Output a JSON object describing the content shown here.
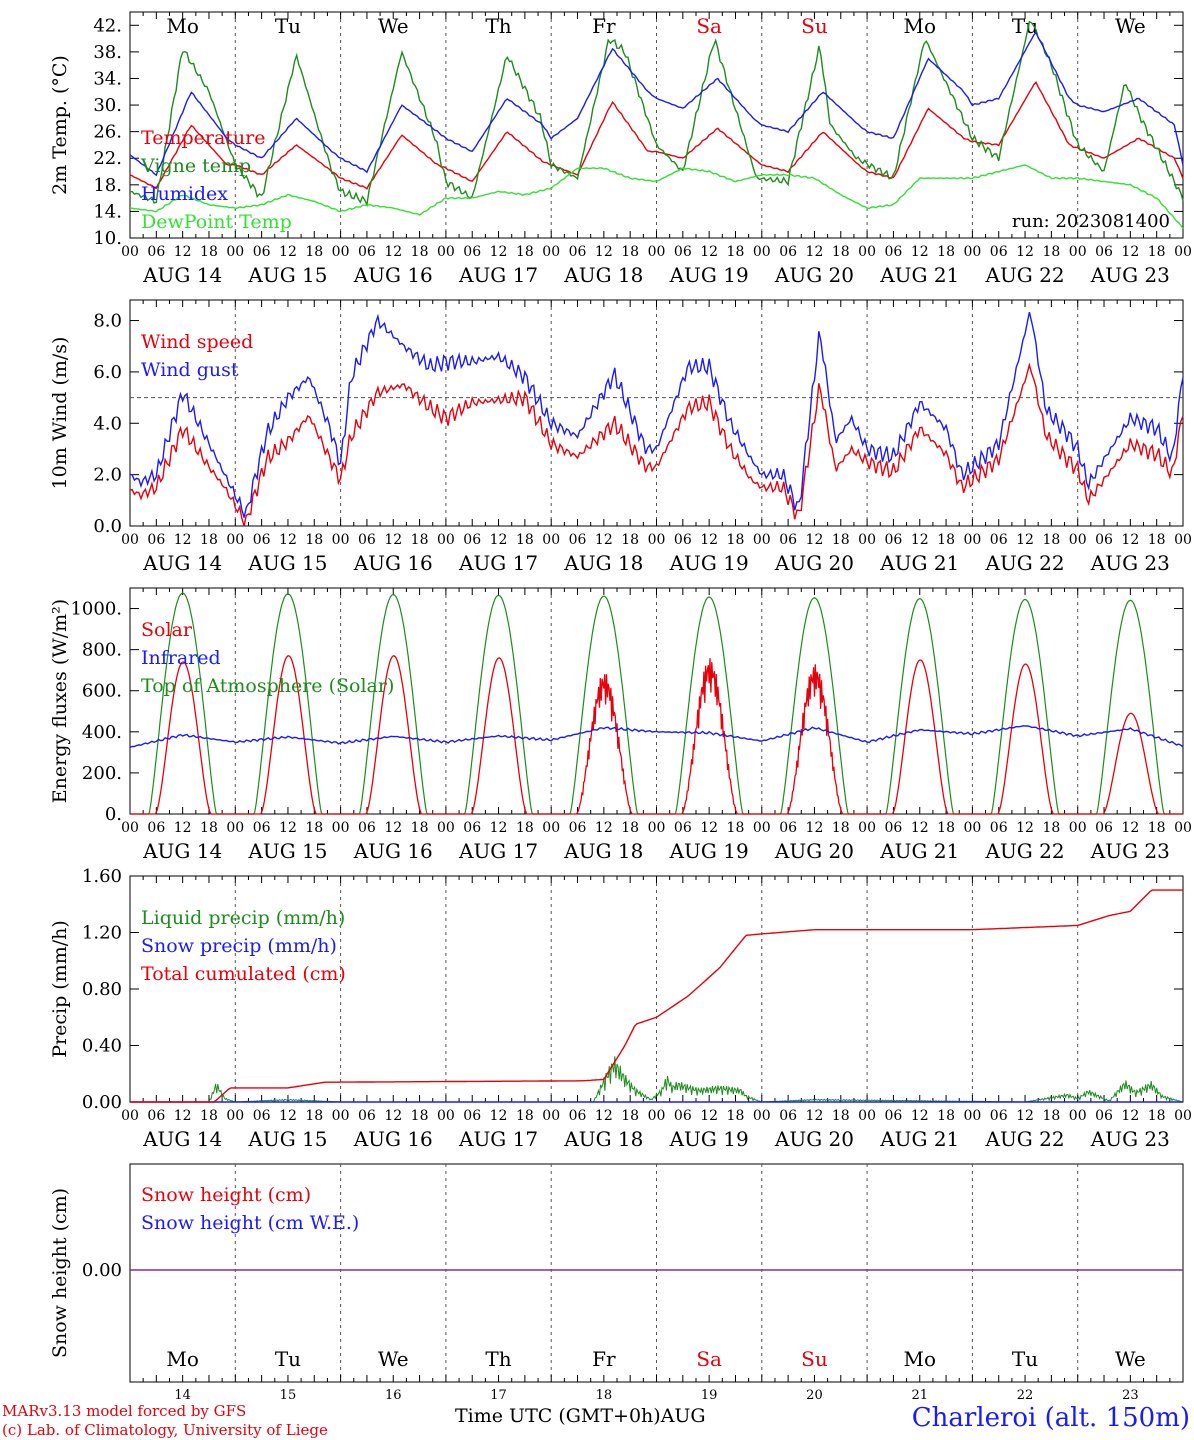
{
  "days": {
    "labels": [
      "Mo",
      "Tu",
      "We",
      "Th",
      "Fr",
      "Sa",
      "Su",
      "Mo",
      "Tu",
      "We"
    ],
    "weekend_flags": [
      false,
      false,
      false,
      false,
      false,
      true,
      true,
      false,
      false,
      false
    ],
    "dates": [
      "AUG 14",
      "AUG 15",
      "AUG 16",
      "AUG 17",
      "AUG 18",
      "AUG 19",
      "AUG 20",
      "AUG 21",
      "AUG 22",
      "AUG 23"
    ],
    "day_numbers": [
      "14",
      "15",
      "16",
      "17",
      "18",
      "19",
      "20",
      "21",
      "22",
      "23"
    ],
    "hour_ticks": [
      "00",
      "06",
      "12",
      "18"
    ],
    "final_tick": "00"
  },
  "colors": {
    "red": "#e8000b",
    "green": "#1c8c1c",
    "blue": "#1a1aff",
    "lightgreen": "#33e033",
    "purple": "#8b2a8b",
    "axis": "#000000",
    "grid": "#555555"
  },
  "footer": {
    "credit_1": "MARv3.13 model forced by GFS",
    "credit_2": "(c) Lab. of Climatology, University of Liege",
    "time_label": "Time UTC (GMT+0h)AUG",
    "station": "Charleroi (alt. 150m)"
  },
  "chart_data": [
    {
      "type": "line",
      "ylabel": "2m Temp. (°C)",
      "ylim": [
        10,
        44
      ],
      "yticks": [
        "10.",
        "14.",
        "18.",
        "22.",
        "26.",
        "30.",
        "34.",
        "38.",
        "42."
      ],
      "annotation": "run: 2023081400",
      "x_range_days": [
        0,
        10
      ],
      "series": [
        {
          "name": "Temperature",
          "color": "red",
          "x": [
            0,
            0.25,
            0.58,
            0.92,
            1.0,
            1.25,
            1.58,
            1.92,
            2.0,
            2.25,
            2.58,
            2.92,
            3.0,
            3.25,
            3.58,
            3.92,
            4.0,
            4.25,
            4.58,
            4.92,
            5.0,
            5.25,
            5.58,
            5.92,
            6.0,
            6.25,
            6.58,
            6.92,
            7.0,
            7.25,
            7.58,
            7.92,
            8.0,
            8.25,
            8.6,
            8.92,
            9.0,
            9.25,
            9.58,
            9.92,
            10.0
          ],
          "y": [
            19.5,
            17.5,
            27,
            21,
            21,
            19.5,
            24,
            20,
            19,
            17.5,
            25.5,
            21,
            20.5,
            18.5,
            26,
            21.5,
            21,
            19.5,
            30.5,
            23,
            23,
            22,
            26.5,
            22,
            21,
            20,
            26,
            21,
            20,
            19,
            29.5,
            25,
            24.5,
            24,
            33.5,
            24,
            23.5,
            22,
            25,
            22,
            19
          ]
        },
        {
          "name": "Vigne temp",
          "color": "green",
          "x": [
            0,
            0.25,
            0.5,
            0.75,
            1.0,
            1.25,
            1.58,
            1.8,
            1.92,
            2.0,
            2.25,
            2.58,
            2.9,
            3.0,
            3.25,
            3.58,
            3.9,
            4.0,
            4.25,
            4.55,
            4.7,
            5.0,
            5.25,
            5.55,
            5.7,
            5.95,
            6.25,
            6.55,
            6.65,
            6.9,
            7.25,
            7.55,
            7.7,
            8.0,
            8.25,
            8.55,
            8.75,
            9.0,
            9.25,
            9.45,
            9.6,
            10.0
          ],
          "y": [
            17,
            15.5,
            38.5,
            32,
            21,
            16,
            37.5,
            26,
            20,
            17,
            15.5,
            38,
            25,
            18.5,
            16,
            37.5,
            28,
            21,
            19,
            40,
            38,
            24,
            20,
            40,
            32,
            19,
            18.5,
            39,
            27,
            22,
            19,
            40,
            35,
            25,
            22,
            43,
            36,
            24,
            20,
            33.5,
            28,
            16
          ]
        },
        {
          "name": "Humidex",
          "color": "blue",
          "x": [
            0,
            0.25,
            0.58,
            0.92,
            1.0,
            1.25,
            1.58,
            1.92,
            2.0,
            2.25,
            2.58,
            2.92,
            3.0,
            3.25,
            3.58,
            3.92,
            4.0,
            4.25,
            4.58,
            4.92,
            5.0,
            5.25,
            5.58,
            5.92,
            6.0,
            6.25,
            6.58,
            6.92,
            7.0,
            7.25,
            7.58,
            7.92,
            8.0,
            8.25,
            8.6,
            8.92,
            9.0,
            9.25,
            9.58,
            9.92,
            10.0
          ],
          "y": [
            22.5,
            19.5,
            32,
            25,
            24,
            22,
            28,
            23,
            22,
            20,
            30,
            26,
            25,
            23,
            31,
            27,
            25,
            28,
            38.5,
            32,
            31,
            29.5,
            34,
            28,
            27,
            26,
            32,
            27,
            26,
            25,
            37,
            32,
            30,
            31,
            41,
            31,
            30,
            29,
            31,
            27,
            21
          ]
        },
        {
          "name": "DewPoint Temp",
          "color": "lightgreen",
          "x": [
            0,
            0.25,
            0.5,
            0.75,
            1.0,
            1.25,
            1.5,
            1.75,
            2.0,
            2.25,
            2.5,
            2.75,
            3.0,
            3.25,
            3.5,
            3.75,
            4.0,
            4.25,
            4.5,
            4.75,
            5.0,
            5.25,
            5.5,
            5.75,
            6.0,
            6.25,
            6.5,
            6.75,
            7.0,
            7.25,
            7.5,
            7.75,
            8.0,
            8.25,
            8.5,
            8.75,
            9.0,
            9.25,
            9.5,
            9.75,
            10.0
          ],
          "y": [
            14.5,
            14,
            16.5,
            15,
            14.5,
            15,
            16.5,
            15.5,
            14,
            15,
            14.5,
            13.5,
            16,
            16,
            17,
            16.5,
            17.5,
            20.5,
            20.5,
            19,
            18.5,
            20.5,
            20,
            18.5,
            19.5,
            19.5,
            19,
            16.5,
            14.5,
            15,
            19,
            19,
            19,
            20,
            21,
            19,
            19,
            18.5,
            18,
            16,
            11.5
          ]
        }
      ]
    },
    {
      "type": "line",
      "ylabel": "10m Wind (m/s)",
      "ylim": [
        0,
        8.8
      ],
      "yticks": [
        "0.0",
        "2.0",
        "4.0",
        "6.0",
        "8.0"
      ],
      "reference_line": 5.0,
      "x_range_days": [
        0,
        10
      ],
      "series": [
        {
          "name": "Wind speed",
          "color": "red",
          "x": [
            0,
            0.1,
            0.25,
            0.5,
            0.75,
            0.9,
            1.0,
            1.1,
            1.15,
            1.3,
            1.5,
            1.7,
            1.9,
            2.0,
            2.1,
            2.35,
            2.6,
            2.85,
            3.0,
            3.25,
            3.5,
            3.75,
            4.0,
            4.25,
            4.6,
            4.9,
            5.0,
            5.3,
            5.5,
            5.7,
            5.9,
            6.0,
            6.2,
            6.35,
            6.55,
            6.7,
            6.85,
            7.0,
            7.25,
            7.5,
            7.75,
            7.9,
            8.0,
            8.25,
            8.55,
            8.7,
            8.9,
            9.0,
            9.1,
            9.25,
            9.5,
            9.75,
            9.9,
            10.0
          ],
          "y": [
            1.4,
            1.2,
            1.5,
            3.8,
            2.3,
            1.5,
            0.8,
            0.1,
            0.8,
            2.6,
            3.3,
            4.3,
            2.6,
            1.8,
            3.5,
            5.2,
            5.5,
            4.6,
            4.2,
            4.8,
            4.9,
            5.0,
            3.2,
            2.7,
            4.0,
            2.3,
            2.3,
            4.6,
            4.8,
            3.0,
            1.8,
            1.5,
            1.5,
            0.3,
            5.5,
            2.2,
            3.0,
            2.5,
            2.1,
            3.8,
            2.8,
            1.5,
            1.8,
            2.6,
            6.3,
            3.5,
            2.6,
            2.2,
            1.0,
            1.8,
            3.2,
            2.8,
            2.0,
            4.5
          ]
        },
        {
          "name": "Wind gust",
          "color": "blue",
          "x": [
            0,
            0.1,
            0.25,
            0.5,
            0.75,
            0.9,
            1.0,
            1.1,
            1.15,
            1.3,
            1.5,
            1.7,
            1.9,
            2.0,
            2.1,
            2.35,
            2.6,
            2.85,
            3.0,
            3.25,
            3.5,
            3.75,
            4.0,
            4.25,
            4.6,
            4.9,
            5.0,
            5.3,
            5.5,
            5.7,
            5.9,
            6.0,
            6.2,
            6.35,
            6.55,
            6.7,
            6.85,
            7.0,
            7.25,
            7.5,
            7.75,
            7.9,
            8.0,
            8.25,
            8.55,
            8.7,
            8.9,
            9.0,
            9.1,
            9.25,
            9.5,
            9.75,
            9.9,
            10.0
          ],
          "y": [
            2.0,
            1.7,
            2.0,
            5.2,
            3.2,
            2.0,
            1.2,
            0.4,
            1.3,
            3.6,
            5.0,
            5.8,
            3.8,
            2.4,
            5.8,
            8.0,
            7.0,
            6.2,
            6.4,
            6.4,
            6.6,
            5.8,
            4.0,
            3.5,
            5.9,
            3.0,
            3.0,
            6.2,
            6.2,
            4.0,
            2.6,
            2.0,
            2.0,
            0.6,
            7.6,
            3.3,
            4.2,
            3.0,
            2.7,
            4.8,
            3.8,
            2.0,
            2.3,
            3.2,
            8.4,
            4.5,
            3.6,
            3.0,
            1.6,
            2.6,
            4.2,
            3.8,
            2.6,
            6.0
          ]
        }
      ]
    },
    {
      "type": "line",
      "ylabel": "Energy fluxes (W/m²)",
      "ylim": [
        0,
        1100
      ],
      "yticks": [
        "0.",
        "200.",
        "400.",
        "600.",
        "800.",
        "1000."
      ],
      "x_range_days": [
        0,
        10
      ],
      "series": [
        {
          "name": "Solar",
          "color": "red",
          "peaks": [
            740,
            770,
            770,
            760,
            690,
            760,
            730,
            750,
            730,
            490
          ],
          "peak_days": [
            0,
            1,
            2,
            3,
            4,
            5,
            6,
            7,
            8,
            9
          ]
        },
        {
          "name": "Infrared",
          "color": "blue",
          "x": [
            0,
            0.5,
            1.0,
            1.5,
            2.0,
            2.5,
            3.0,
            3.5,
            4.0,
            4.5,
            5.0,
            5.5,
            6.0,
            6.5,
            7.0,
            7.5,
            8.0,
            8.5,
            9.0,
            9.5,
            10.0
          ],
          "y": [
            325,
            385,
            350,
            375,
            345,
            378,
            350,
            380,
            360,
            420,
            400,
            395,
            355,
            420,
            350,
            410,
            390,
            430,
            380,
            415,
            330
          ]
        },
        {
          "name": "Top of Atmosphere (Solar)",
          "color": "green",
          "peaks": [
            1075,
            1072,
            1068,
            1064,
            1060,
            1056,
            1052,
            1048,
            1044,
            1040
          ],
          "peak_days": [
            0,
            1,
            2,
            3,
            4,
            5,
            6,
            7,
            8,
            9
          ]
        }
      ]
    },
    {
      "type": "line",
      "ylabel": "Precip (mm/h)",
      "ylim": [
        0,
        1.6
      ],
      "yticks": [
        "0.00",
        "0.40",
        "0.80",
        "1.20",
        "1.60"
      ],
      "x_range_days": [
        0,
        10
      ],
      "series": [
        {
          "name": "Liquid precip (mm/h)",
          "color": "green",
          "x": [
            0,
            0.75,
            0.82,
            0.9,
            1.0,
            1.5,
            2.0,
            4.4,
            4.5,
            4.6,
            4.7,
            4.8,
            4.95,
            5.05,
            5.1,
            5.15,
            5.2,
            5.4,
            5.6,
            5.8,
            5.85,
            6.0,
            6.5,
            8.5,
            8.9,
            9.0,
            9.1,
            9.3,
            9.45,
            9.55,
            9.7,
            9.8,
            10.0
          ],
          "y": [
            0,
            0,
            0.15,
            0.03,
            0,
            0.02,
            0,
            0,
            0.18,
            0.33,
            0.2,
            0.1,
            0.02,
            0.1,
            0.2,
            0.12,
            0.15,
            0.1,
            0.12,
            0.1,
            0.05,
            0,
            0.02,
            0,
            0.06,
            0.03,
            0.09,
            0.01,
            0.16,
            0.08,
            0.15,
            0.05,
            0
          ]
        },
        {
          "name": "Snow precip (mm/h)",
          "color": "blue",
          "x": [
            0,
            10
          ],
          "y": [
            0,
            0
          ]
        },
        {
          "name": "Total cumulated (cm)",
          "color": "red",
          "x": [
            0,
            0.8,
            0.95,
            1.5,
            1.85,
            4.3,
            4.5,
            4.7,
            4.8,
            5.0,
            5.3,
            5.6,
            5.85,
            6.0,
            6.5,
            7.0,
            8.0,
            9.0,
            9.3,
            9.5,
            9.7,
            10.0
          ],
          "y": [
            0,
            0,
            0.1,
            0.1,
            0.14,
            0.15,
            0.16,
            0.4,
            0.55,
            0.6,
            0.75,
            0.95,
            1.18,
            1.19,
            1.22,
            1.22,
            1.22,
            1.25,
            1.32,
            1.35,
            1.5,
            1.5
          ]
        }
      ]
    },
    {
      "type": "line",
      "ylabel": "Snow height (cm)",
      "yticks": [
        "0.00"
      ],
      "x_range_days": [
        0,
        10
      ],
      "series": [
        {
          "name": "Snow height (cm)",
          "color": "red",
          "x": [
            0,
            10
          ],
          "y": [
            0,
            0
          ]
        },
        {
          "name": "Snow height (cm W.E.)",
          "color": "blue",
          "x": [
            0,
            10
          ],
          "y": [
            0,
            0
          ]
        }
      ]
    }
  ]
}
